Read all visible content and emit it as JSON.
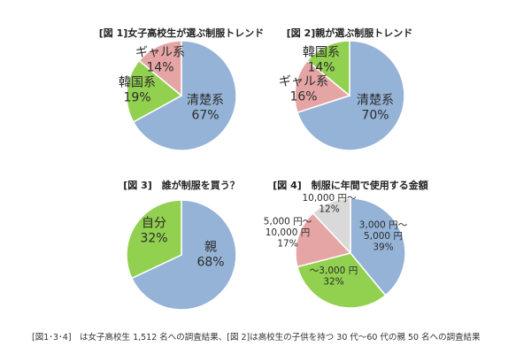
{
  "caption": "[図1･3･4]　は女子高校生 1,512 名への調査結果、[図 2]は高校生の子供を持つ 30 代〜60 代の親 50 名への調査結果",
  "colors": {
    "blue": "#95b3d7",
    "green": "#92d050",
    "pink": "#e6a5a5",
    "gray": "#d9d9d9"
  },
  "chart_data": [
    {
      "type": "pie",
      "title": "[図 1]女子高校生が選ぶ制服トレンド",
      "slices": [
        {
          "lines": [
            "清楚系",
            "67%"
          ],
          "value": 67,
          "color": "blue"
        },
        {
          "lines": [
            "韓国系",
            "19%"
          ],
          "value": 19,
          "color": "green"
        },
        {
          "lines": [
            "ギャル系",
            "14%"
          ],
          "value": 14,
          "color": "pink"
        }
      ]
    },
    {
      "type": "pie",
      "title": "[図 2]親が選ぶ制服トレンド",
      "slices": [
        {
          "lines": [
            "清楚系",
            "70%"
          ],
          "value": 70,
          "color": "blue"
        },
        {
          "lines": [
            "ギャル系",
            "16%"
          ],
          "value": 16,
          "color": "pink"
        },
        {
          "lines": [
            "韓国系",
            "14%"
          ],
          "value": 14,
          "color": "green"
        }
      ]
    },
    {
      "type": "pie",
      "title": "[図 3]　誰が制服を買う？",
      "slices": [
        {
          "lines": [
            "親",
            "68%"
          ],
          "value": 68,
          "color": "blue"
        },
        {
          "lines": [
            "自分",
            "32%"
          ],
          "value": 32,
          "color": "green"
        }
      ]
    },
    {
      "type": "pie",
      "title": "[図 4]　制服に年間で使用する金額",
      "slices": [
        {
          "lines": [
            "3,000 円〜",
            "5,000 円",
            "39%"
          ],
          "value": 39,
          "color": "blue"
        },
        {
          "lines": [
            "〜3,000 円",
            "32%"
          ],
          "value": 32,
          "color": "green"
        },
        {
          "lines": [
            "5,000 円〜",
            "10,000 円",
            "17%"
          ],
          "value": 17,
          "color": "pink"
        },
        {
          "lines": [
            "10,000 円〜",
            "12%"
          ],
          "value": 12,
          "color": "gray"
        }
      ]
    }
  ]
}
